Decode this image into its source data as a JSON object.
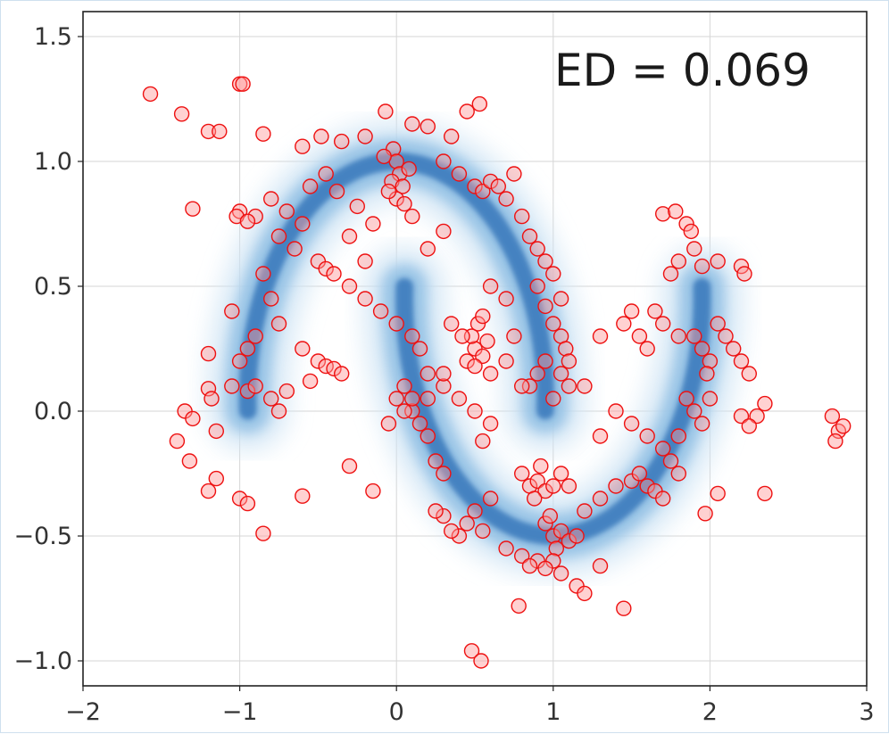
{
  "chart_data": {
    "type": "scatter",
    "title": "",
    "xlabel": "",
    "ylabel": "",
    "xlim": [
      -2,
      3
    ],
    "ylim": [
      -1.1,
      1.6
    ],
    "x_ticks": [
      -2,
      -1,
      0,
      1,
      2,
      3
    ],
    "x_tick_labels": [
      "−2",
      "−1",
      "0",
      "1",
      "2",
      "3"
    ],
    "y_ticks": [
      -1.0,
      -0.5,
      0.0,
      0.5,
      1.0,
      1.5
    ],
    "y_tick_labels": [
      "−1.0",
      "−0.5",
      "0.0",
      "0.5",
      "1.0",
      "1.5"
    ],
    "grid": true,
    "annotation": "ED = 0.069",
    "colors": {
      "marker_edge": "#ee1111",
      "marker_fill": "#ff9a9a",
      "density": "#2a6db5",
      "grid": "#d6d6d6",
      "axis": "#222222"
    },
    "density_background": "two interleaved crescent moons (blue KDE contours)",
    "series": [
      {
        "points": [
          [
            -1.57,
            1.27
          ],
          [
            -1.37,
            1.19
          ],
          [
            -1.2,
            1.12
          ],
          [
            -1.13,
            1.12
          ],
          [
            -1.0,
            1.31
          ],
          [
            -0.98,
            1.31
          ],
          [
            -1.3,
            0.81
          ],
          [
            -0.85,
            1.11
          ],
          [
            -0.6,
            1.06
          ],
          [
            -0.48,
            1.1
          ],
          [
            -0.35,
            1.08
          ],
          [
            -0.2,
            1.1
          ],
          [
            -0.07,
            1.2
          ],
          [
            0.1,
            1.15
          ],
          [
            0.2,
            1.14
          ],
          [
            0.35,
            1.1
          ],
          [
            0.45,
            1.2
          ],
          [
            0.53,
            1.23
          ],
          [
            -0.02,
            1.05
          ],
          [
            0.0,
            1.0
          ],
          [
            0.02,
            0.95
          ],
          [
            -0.03,
            0.92
          ],
          [
            0.04,
            0.9
          ],
          [
            0.0,
            0.85
          ],
          [
            0.05,
            0.83
          ],
          [
            -0.05,
            0.88
          ],
          [
            0.08,
            0.97
          ],
          [
            -0.08,
            1.02
          ],
          [
            0.3,
            1.0
          ],
          [
            0.4,
            0.95
          ],
          [
            0.5,
            0.9
          ],
          [
            0.55,
            0.88
          ],
          [
            0.6,
            0.92
          ],
          [
            0.65,
            0.9
          ],
          [
            0.7,
            0.85
          ],
          [
            0.75,
            0.95
          ],
          [
            -0.9,
            0.78
          ],
          [
            -0.8,
            0.85
          ],
          [
            -0.7,
            0.8
          ],
          [
            -0.6,
            0.75
          ],
          [
            -0.55,
            0.9
          ],
          [
            -0.45,
            0.95
          ],
          [
            -0.38,
            0.88
          ],
          [
            -0.25,
            0.82
          ],
          [
            -1.0,
            0.8
          ],
          [
            -1.02,
            0.78
          ],
          [
            -0.95,
            0.76
          ],
          [
            -0.75,
            0.7
          ],
          [
            -0.65,
            0.65
          ],
          [
            -0.5,
            0.6
          ],
          [
            -0.45,
            0.57
          ],
          [
            -0.4,
            0.55
          ],
          [
            -0.3,
            0.5
          ],
          [
            -0.2,
            0.45
          ],
          [
            -0.1,
            0.4
          ],
          [
            0.0,
            0.35
          ],
          [
            -0.85,
            0.55
          ],
          [
            -0.8,
            0.45
          ],
          [
            -0.75,
            0.35
          ],
          [
            -0.9,
            0.3
          ],
          [
            -0.95,
            0.25
          ],
          [
            -1.0,
            0.2
          ],
          [
            -1.05,
            0.4
          ],
          [
            -1.2,
            0.23
          ],
          [
            -0.6,
            0.25
          ],
          [
            -0.5,
            0.2
          ],
          [
            -0.45,
            0.18
          ],
          [
            -0.4,
            0.17
          ],
          [
            -0.35,
            0.15
          ],
          [
            -0.55,
            0.12
          ],
          [
            -1.2,
            0.09
          ],
          [
            -1.18,
            0.05
          ],
          [
            -1.15,
            -0.08
          ],
          [
            -1.05,
            0.1
          ],
          [
            -0.95,
            0.08
          ],
          [
            -0.9,
            0.1
          ],
          [
            -0.8,
            0.05
          ],
          [
            -0.75,
            0.0
          ],
          [
            -0.7,
            0.08
          ],
          [
            -1.35,
            0.0
          ],
          [
            -1.3,
            -0.03
          ],
          [
            -1.4,
            -0.12
          ],
          [
            -1.32,
            -0.2
          ],
          [
            -1.2,
            -0.32
          ],
          [
            -1.15,
            -0.27
          ],
          [
            -1.0,
            -0.35
          ],
          [
            -0.95,
            -0.37
          ],
          [
            -0.85,
            -0.49
          ],
          [
            -0.6,
            -0.34
          ],
          [
            -0.3,
            -0.22
          ],
          [
            -0.15,
            -0.32
          ],
          [
            0.5,
            0.25
          ],
          [
            0.48,
            0.3
          ],
          [
            0.55,
            0.22
          ],
          [
            0.52,
            0.35
          ],
          [
            0.45,
            0.2
          ],
          [
            0.58,
            0.28
          ],
          [
            0.5,
            0.18
          ],
          [
            0.6,
            0.15
          ],
          [
            0.42,
            0.3
          ],
          [
            0.55,
            0.38
          ],
          [
            0.1,
            0.3
          ],
          [
            0.15,
            0.25
          ],
          [
            0.2,
            0.15
          ],
          [
            0.05,
            0.1
          ],
          [
            0.1,
            0.0
          ],
          [
            0.15,
            -0.05
          ],
          [
            0.2,
            -0.1
          ],
          [
            0.25,
            -0.2
          ],
          [
            0.3,
            -0.25
          ],
          [
            0.0,
            0.05
          ],
          [
            0.05,
            0.0
          ],
          [
            -0.05,
            -0.05
          ],
          [
            0.1,
            0.05
          ],
          [
            0.2,
            0.05
          ],
          [
            0.3,
            0.1
          ],
          [
            0.35,
            0.35
          ],
          [
            0.3,
            0.15
          ],
          [
            0.4,
            0.05
          ],
          [
            0.5,
            0.0
          ],
          [
            0.6,
            -0.05
          ],
          [
            0.55,
            -0.12
          ],
          [
            0.8,
            0.78
          ],
          [
            0.85,
            0.7
          ],
          [
            0.9,
            0.65
          ],
          [
            0.95,
            0.6
          ],
          [
            1.0,
            0.55
          ],
          [
            1.05,
            0.45
          ],
          [
            0.9,
            0.5
          ],
          [
            0.95,
            0.42
          ],
          [
            1.0,
            0.35
          ],
          [
            1.05,
            0.3
          ],
          [
            1.08,
            0.25
          ],
          [
            1.1,
            0.2
          ],
          [
            1.05,
            0.15
          ],
          [
            0.95,
            0.2
          ],
          [
            0.9,
            0.15
          ],
          [
            0.85,
            0.1
          ],
          [
            1.0,
            0.05
          ],
          [
            1.1,
            0.1
          ],
          [
            1.2,
            0.1
          ],
          [
            1.3,
            0.3
          ],
          [
            1.45,
            0.35
          ],
          [
            1.55,
            0.3
          ],
          [
            1.6,
            0.25
          ],
          [
            1.5,
            0.4
          ],
          [
            1.65,
            0.4
          ],
          [
            1.7,
            0.35
          ],
          [
            1.8,
            0.3
          ],
          [
            1.7,
            0.79
          ],
          [
            1.78,
            0.8
          ],
          [
            1.85,
            0.75
          ],
          [
            1.88,
            0.72
          ],
          [
            1.9,
            0.65
          ],
          [
            1.8,
            0.6
          ],
          [
            1.75,
            0.55
          ],
          [
            1.95,
            0.58
          ],
          [
            2.05,
            0.6
          ],
          [
            2.2,
            0.58
          ],
          [
            2.22,
            0.55
          ],
          [
            1.9,
            0.3
          ],
          [
            1.95,
            0.25
          ],
          [
            2.0,
            0.2
          ],
          [
            2.05,
            0.35
          ],
          [
            1.98,
            0.15
          ],
          [
            2.1,
            0.3
          ],
          [
            2.15,
            0.25
          ],
          [
            2.2,
            0.2
          ],
          [
            2.25,
            0.15
          ],
          [
            1.85,
            0.05
          ],
          [
            1.9,
            0.0
          ],
          [
            1.95,
            -0.05
          ],
          [
            2.0,
            0.05
          ],
          [
            1.8,
            -0.1
          ],
          [
            2.2,
            -0.02
          ],
          [
            2.3,
            -0.02
          ],
          [
            2.35,
            0.03
          ],
          [
            2.25,
            -0.06
          ],
          [
            2.35,
            -0.33
          ],
          [
            2.05,
            -0.33
          ],
          [
            1.97,
            -0.41
          ],
          [
            2.78,
            -0.02
          ],
          [
            2.82,
            -0.08
          ],
          [
            2.85,
            -0.06
          ],
          [
            2.8,
            -0.12
          ],
          [
            0.8,
            -0.25
          ],
          [
            0.85,
            -0.3
          ],
          [
            0.9,
            -0.28
          ],
          [
            0.95,
            -0.32
          ],
          [
            1.0,
            -0.3
          ],
          [
            0.92,
            -0.22
          ],
          [
            0.88,
            -0.35
          ],
          [
            1.05,
            -0.25
          ],
          [
            1.1,
            -0.3
          ],
          [
            0.95,
            -0.45
          ],
          [
            1.0,
            -0.5
          ],
          [
            1.02,
            -0.55
          ],
          [
            1.05,
            -0.48
          ],
          [
            0.98,
            -0.42
          ],
          [
            1.1,
            -0.52
          ],
          [
            1.15,
            -0.5
          ],
          [
            1.0,
            -0.6
          ],
          [
            0.9,
            -0.6
          ],
          [
            0.6,
            -0.35
          ],
          [
            0.5,
            -0.4
          ],
          [
            0.45,
            -0.45
          ],
          [
            0.4,
            -0.5
          ],
          [
            0.3,
            -0.42
          ],
          [
            0.25,
            -0.4
          ],
          [
            0.35,
            -0.48
          ],
          [
            0.55,
            -0.48
          ],
          [
            0.7,
            -0.55
          ],
          [
            0.8,
            -0.58
          ],
          [
            0.85,
            -0.62
          ],
          [
            0.95,
            -0.63
          ],
          [
            1.05,
            -0.65
          ],
          [
            1.15,
            -0.7
          ],
          [
            1.2,
            -0.73
          ],
          [
            1.3,
            -0.62
          ],
          [
            1.2,
            -0.4
          ],
          [
            1.3,
            -0.35
          ],
          [
            1.4,
            -0.3
          ],
          [
            1.5,
            -0.28
          ],
          [
            1.55,
            -0.25
          ],
          [
            1.6,
            -0.3
          ],
          [
            1.65,
            -0.32
          ],
          [
            1.7,
            -0.35
          ],
          [
            1.3,
            -0.1
          ],
          [
            1.4,
            0.0
          ],
          [
            1.5,
            -0.05
          ],
          [
            1.6,
            -0.1
          ],
          [
            1.7,
            -0.15
          ],
          [
            1.75,
            -0.2
          ],
          [
            1.8,
            -0.25
          ],
          [
            0.78,
            -0.78
          ],
          [
            1.45,
            -0.79
          ],
          [
            0.48,
            -0.96
          ],
          [
            0.54,
            -1.0
          ],
          [
            -0.2,
            0.6
          ],
          [
            -0.3,
            0.7
          ],
          [
            -0.15,
            0.75
          ],
          [
            0.2,
            0.65
          ],
          [
            0.3,
            0.72
          ],
          [
            0.1,
            0.78
          ],
          [
            0.6,
            0.5
          ],
          [
            0.7,
            0.45
          ],
          [
            0.75,
            0.3
          ],
          [
            0.7,
            0.2
          ],
          [
            0.8,
            0.1
          ]
        ]
      }
    ]
  }
}
